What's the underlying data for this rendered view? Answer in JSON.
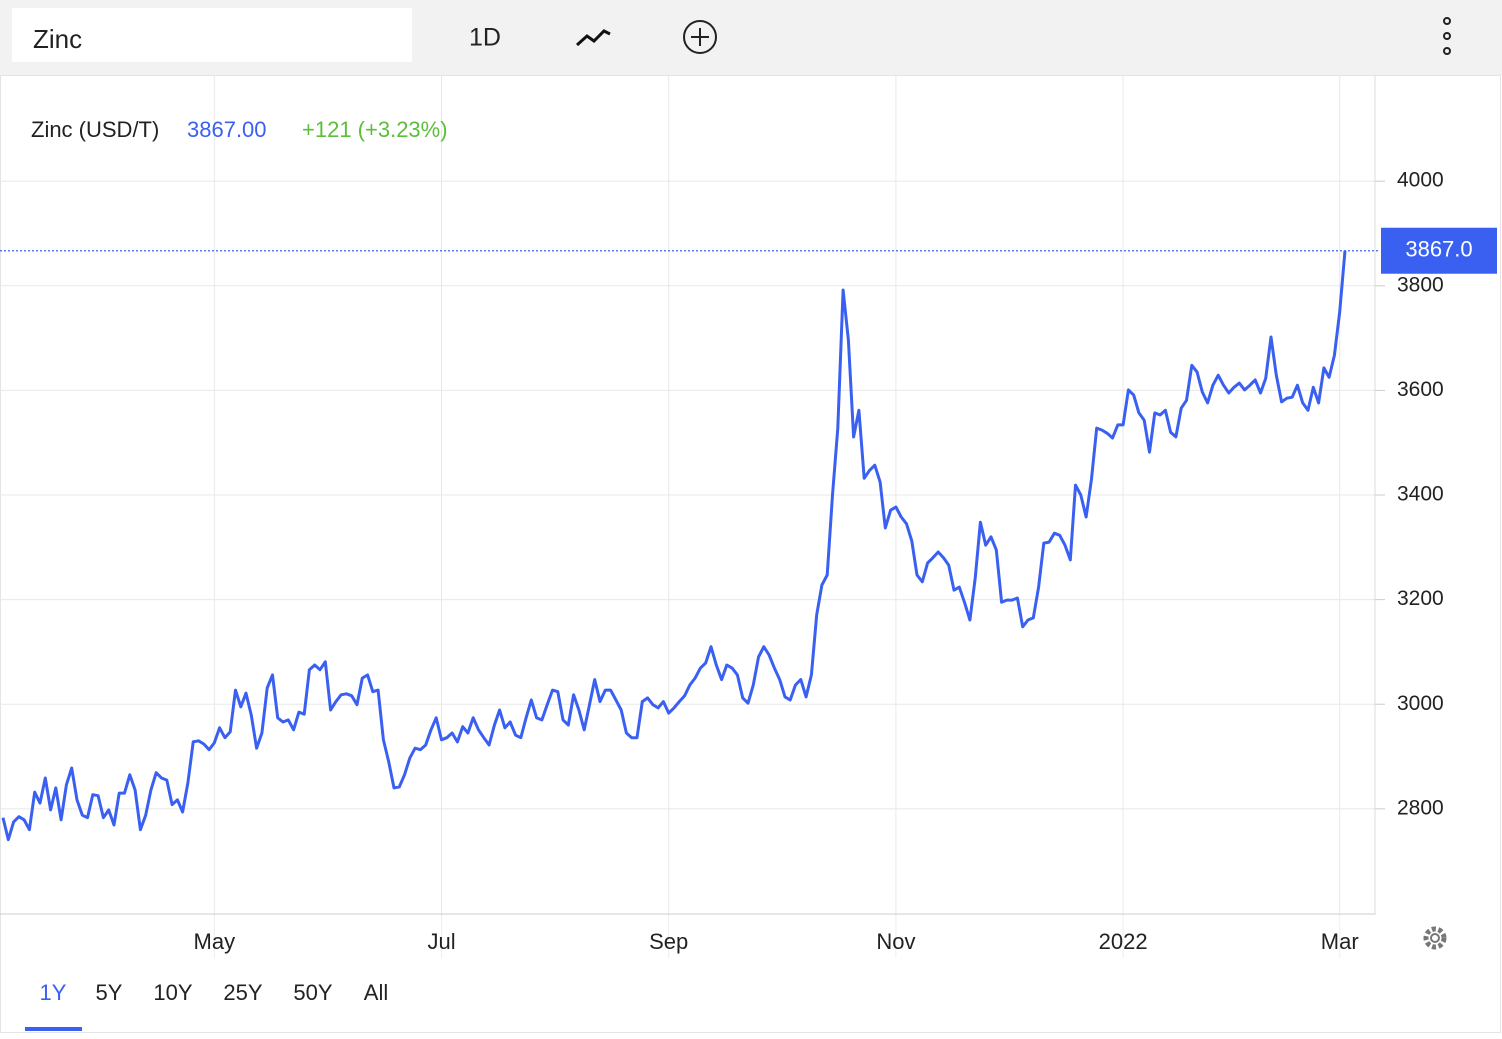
{
  "chart_data": {
    "type": "line",
    "title": "Zinc",
    "interval": "1D",
    "ranges": [
      "1Y",
      "5Y",
      "10Y",
      "25Y",
      "50Y",
      "All"
    ],
    "active_range": 0,
    "price_label": "3867.00",
    "change_label": "+121 (+3.23%)",
    "last_label": "3867.0",
    "series": [
      {
        "name": "Zinc (USD/T)",
        "color": "#3a60f2",
        "values": [
          2783,
          2741,
          2775,
          2785,
          2779,
          2760,
          2832,
          2811,
          2859,
          2798,
          2840,
          2779,
          2846,
          2878,
          2817,
          2788,
          2783,
          2827,
          2825,
          2783,
          2798,
          2769,
          2830,
          2830,
          2865,
          2836,
          2760,
          2788,
          2836,
          2869,
          2859,
          2855,
          2808,
          2817,
          2794,
          2850,
          2928,
          2930,
          2924,
          2913,
          2926,
          2955,
          2936,
          2947,
          3027,
          2995,
          3021,
          2979,
          2916,
          2945,
          3031,
          3056,
          2974,
          2966,
          2970,
          2951,
          2985,
          2981,
          3066,
          3075,
          3066,
          3081,
          2989,
          3005,
          3018,
          3020,
          3016,
          2999,
          3050,
          3056,
          3024,
          3027,
          2932,
          2890,
          2840,
          2842,
          2865,
          2897,
          2916,
          2913,
          2922,
          2951,
          2974,
          2932,
          2936,
          2945,
          2928,
          2957,
          2945,
          2974,
          2951,
          2936,
          2922,
          2960,
          2989,
          2955,
          2966,
          2941,
          2936,
          2974,
          3008,
          2974,
          2970,
          2999,
          3027,
          3024,
          2970,
          2960,
          3018,
          2989,
          2951,
          2999,
          3047,
          3005,
          3027,
          3027,
          3008,
          2989,
          2945,
          2936,
          2936,
          3005,
          3012,
          2999,
          2993,
          3005,
          2983,
          2993,
          3005,
          3016,
          3037,
          3050,
          3069,
          3079,
          3110,
          3075,
          3047,
          3075,
          3069,
          3056,
          3012,
          3002,
          3037,
          3090,
          3110,
          3094,
          3069,
          3047,
          3014,
          3008,
          3037,
          3047,
          3014,
          3056,
          3171,
          3228,
          3247,
          3400,
          3528,
          3792,
          3696,
          3511,
          3562,
          3432,
          3447,
          3457,
          3425,
          3337,
          3371,
          3377,
          3358,
          3345,
          3312,
          3247,
          3234,
          3270,
          3280,
          3291,
          3280,
          3266,
          3218,
          3224,
          3194,
          3161,
          3241,
          3348,
          3304,
          3320,
          3295,
          3195,
          3199,
          3199,
          3203,
          3148,
          3161,
          3165,
          3224,
          3308,
          3310,
          3327,
          3323,
          3304,
          3276,
          3419,
          3400,
          3358,
          3429,
          3528,
          3524,
          3518,
          3509,
          3534,
          3534,
          3601,
          3591,
          3557,
          3543,
          3482,
          3557,
          3553,
          3562,
          3520,
          3511,
          3566,
          3581,
          3648,
          3635,
          3597,
          3576,
          3610,
          3629,
          3610,
          3595,
          3606,
          3614,
          3601,
          3610,
          3620,
          3595,
          3623,
          3702,
          3629,
          3578,
          3585,
          3587,
          3610,
          3576,
          3562,
          3606,
          3576,
          3643,
          3625,
          3667,
          3750,
          3867
        ]
      }
    ],
    "xlim": [
      0,
      254
    ],
    "xticks": [
      {
        "value": 40,
        "label": "May"
      },
      {
        "value": 83,
        "label": "Jul"
      },
      {
        "value": 126,
        "label": "Sep"
      },
      {
        "value": 169,
        "label": "Nov"
      },
      {
        "value": 212,
        "label": "2022"
      },
      {
        "value": 253,
        "label": "Mar"
      }
    ],
    "ylim": [
      2597,
      4203
    ],
    "yticks": [
      2800,
      3000,
      3200,
      3400,
      3600,
      3800,
      4000
    ],
    "grid": true
  }
}
